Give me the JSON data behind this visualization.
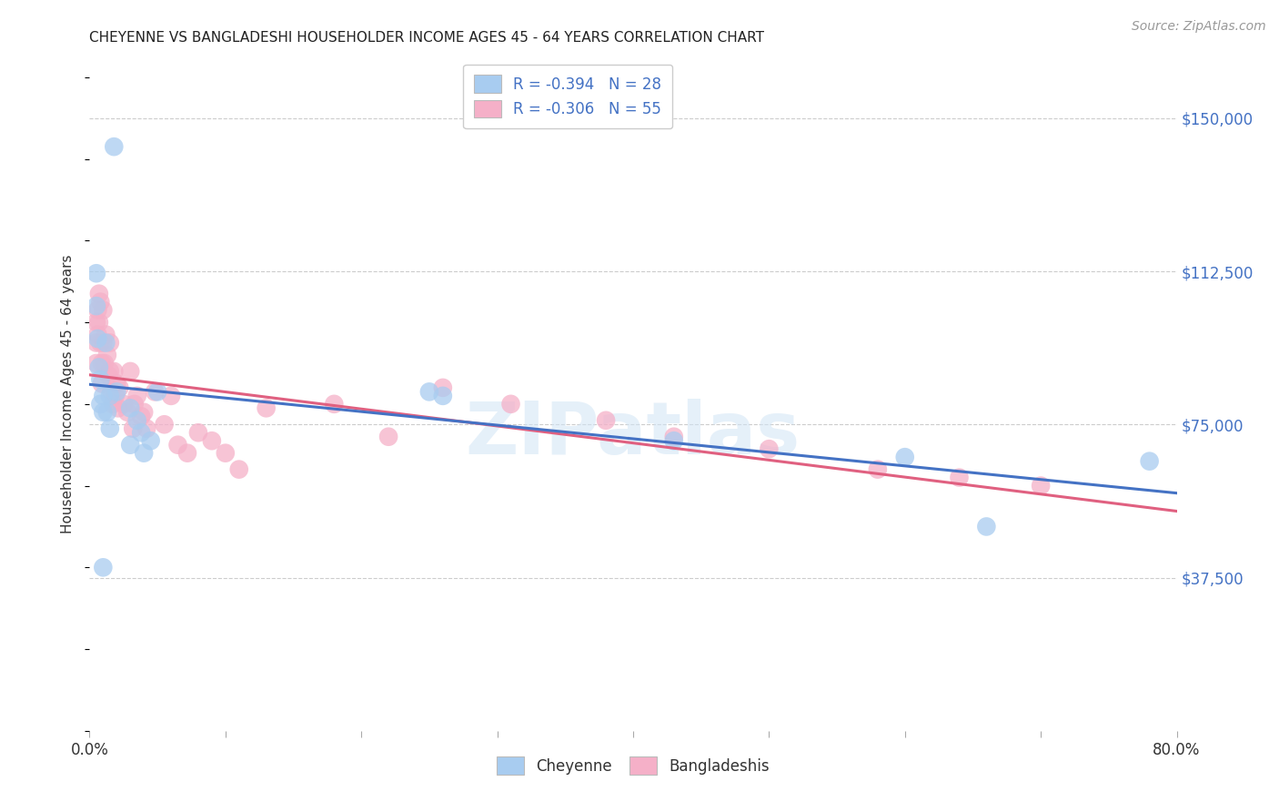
{
  "title": "CHEYENNE VS BANGLADESHI HOUSEHOLDER INCOME AGES 45 - 64 YEARS CORRELATION CHART",
  "source": "Source: ZipAtlas.com",
  "ylabel": "Householder Income Ages 45 - 64 years",
  "xlim": [
    0.0,
    0.8
  ],
  "ylim": [
    0,
    165000
  ],
  "yticks": [
    37500,
    75000,
    112500,
    150000
  ],
  "ytick_labels": [
    "$37,500",
    "$75,000",
    "$112,500",
    "$150,000"
  ],
  "xticks": [
    0.0,
    0.1,
    0.2,
    0.3,
    0.4,
    0.5,
    0.6,
    0.7,
    0.8
  ],
  "xtick_labels": [
    "0.0%",
    "",
    "",
    "",
    "",
    "",
    "",
    "",
    "80.0%"
  ],
  "legend_labels": [
    "R = -0.394   N = 28",
    "R = -0.306   N = 55"
  ],
  "cheyenne_color": "#a8ccf0",
  "bangladeshi_color": "#f5b0c8",
  "trendline_cheyenne_color": "#4472c4",
  "trendline_bangladeshi_color": "#e06080",
  "watermark": "ZIPatlas",
  "background_color": "#ffffff",
  "grid_color": "#cccccc",
  "cheyenne_x": [
    0.018,
    0.005,
    0.005,
    0.006,
    0.007,
    0.008,
    0.008,
    0.01,
    0.01,
    0.012,
    0.013,
    0.015,
    0.015,
    0.02,
    0.03,
    0.035,
    0.03,
    0.038,
    0.04,
    0.045,
    0.05,
    0.25,
    0.26,
    0.43,
    0.6,
    0.66,
    0.78,
    0.01
  ],
  "cheyenne_y": [
    143000,
    112000,
    104000,
    96000,
    89000,
    86000,
    80000,
    82000,
    78000,
    95000,
    78000,
    82000,
    74000,
    83000,
    79000,
    76000,
    70000,
    73000,
    68000,
    71000,
    83000,
    83000,
    82000,
    71000,
    67000,
    50000,
    66000,
    40000
  ],
  "bangladeshi_x": [
    0.005,
    0.005,
    0.005,
    0.006,
    0.006,
    0.007,
    0.007,
    0.008,
    0.008,
    0.009,
    0.009,
    0.01,
    0.01,
    0.011,
    0.012,
    0.013,
    0.014,
    0.015,
    0.015,
    0.016,
    0.017,
    0.018,
    0.019,
    0.02,
    0.021,
    0.022,
    0.025,
    0.028,
    0.03,
    0.032,
    0.033,
    0.035,
    0.038,
    0.04,
    0.042,
    0.048,
    0.055,
    0.06,
    0.065,
    0.072,
    0.08,
    0.09,
    0.1,
    0.11,
    0.13,
    0.18,
    0.22,
    0.26,
    0.31,
    0.38,
    0.43,
    0.5,
    0.58,
    0.64,
    0.7
  ],
  "bangladeshi_y": [
    100000,
    95000,
    90000,
    103000,
    97000,
    107000,
    100000,
    105000,
    95000,
    90000,
    85000,
    103000,
    95000,
    90000,
    97000,
    92000,
    87000,
    95000,
    88000,
    83000,
    80000,
    88000,
    82000,
    85000,
    79000,
    84000,
    80000,
    78000,
    88000,
    74000,
    80000,
    82000,
    77000,
    78000,
    74000,
    83000,
    75000,
    82000,
    70000,
    68000,
    73000,
    71000,
    68000,
    64000,
    79000,
    80000,
    72000,
    84000,
    80000,
    76000,
    72000,
    69000,
    64000,
    62000,
    60000
  ],
  "title_color": "#222222",
  "axis_label_color": "#333333",
  "tick_color_y": "#4472c4",
  "tick_color_x": "#333333",
  "legend_text_color": "#4472c4"
}
